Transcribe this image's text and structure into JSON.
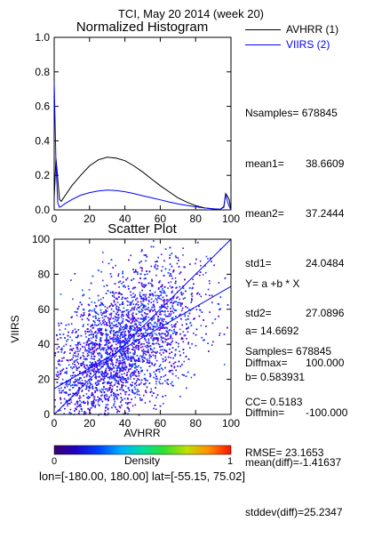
{
  "header": {
    "title": "TCI,  May 20 2014 (week 20)"
  },
  "legend": {
    "items": [
      {
        "label": "AVHRR (1)",
        "color": "#000000"
      },
      {
        "label": "VIIRS (2)",
        "color": "#0000ff"
      }
    ]
  },
  "stats": {
    "lines": [
      {
        "label": "Nsamples=",
        "value": "678845"
      },
      {
        "label": "mean1=",
        "value": "38.6609"
      },
      {
        "label": "mean2=",
        "value": "37.2444"
      },
      {
        "label": "std1=",
        "value": "24.0484"
      },
      {
        "label": "std2=",
        "value": "27.0896"
      },
      {
        "label": "Diffmax=",
        "value": "100.000"
      },
      {
        "label": "Diffmin=",
        "value": "-100.000"
      },
      {
        "label": "mean(diff)=",
        "value": "-1.41637"
      },
      {
        "label": "stddev(diff)=",
        "value": "25.2347"
      }
    ]
  },
  "regression": {
    "equation": "Y= a +b * X",
    "a": "a= 14.6692",
    "b": "b= 0.583931",
    "samples": "Samples= 678845",
    "cc": "CC= 0.5183",
    "rmse": "RMSE= 23.1653"
  },
  "colorbar": {
    "label": "Density",
    "min_label": "0",
    "max_label": "1"
  },
  "footer": {
    "region": "lon=[-180.00, 180.00] lat=[-55.15, 75.02]"
  },
  "chart_data": [
    {
      "type": "line",
      "title": "Normalized Histogram",
      "xlim": [
        0,
        100
      ],
      "ylim": [
        0,
        1.0
      ],
      "xticks": [
        "0",
        "20",
        "40",
        "60",
        "80",
        "100"
      ],
      "yticks": [
        "0.0",
        "0.2",
        "0.4",
        "0.6",
        "0.8",
        "1.0"
      ],
      "x": [
        0,
        1,
        2,
        3,
        4,
        6,
        10,
        15,
        20,
        25,
        30,
        35,
        40,
        45,
        50,
        55,
        60,
        65,
        70,
        75,
        80,
        85,
        90,
        94,
        96,
        97,
        98,
        99,
        100
      ],
      "series": [
        {
          "name": "AVHRR (1)",
          "color": "#000000",
          "values": [
            0.07,
            0.3,
            0.18,
            0.06,
            0.05,
            0.08,
            0.14,
            0.2,
            0.255,
            0.29,
            0.305,
            0.3,
            0.285,
            0.255,
            0.22,
            0.18,
            0.14,
            0.105,
            0.07,
            0.045,
            0.025,
            0.012,
            0.005,
            0.003,
            0.02,
            0.095,
            0.08,
            0.06,
            0.0
          ]
        },
        {
          "name": "VIIRS (2)",
          "color": "#0000ff",
          "values": [
            0.74,
            0.28,
            0.04,
            0.015,
            0.02,
            0.035,
            0.06,
            0.085,
            0.1,
            0.11,
            0.115,
            0.112,
            0.105,
            0.095,
            0.082,
            0.07,
            0.058,
            0.046,
            0.035,
            0.026,
            0.018,
            0.011,
            0.006,
            0.004,
            0.015,
            0.09,
            0.05,
            0.02,
            0.0
          ]
        }
      ]
    },
    {
      "type": "scatter",
      "title": "Scatter Plot",
      "xlabel": "AVHRR",
      "ylabel": "VIIRS",
      "xlim": [
        0,
        100
      ],
      "ylim": [
        0,
        100
      ],
      "xticks": [
        "0",
        "20",
        "40",
        "60",
        "80",
        "100"
      ],
      "yticks": [
        "0",
        "20",
        "40",
        "60",
        "80",
        "100"
      ],
      "regression": {
        "a": 14.6692,
        "b": 0.583931
      }
    }
  ]
}
